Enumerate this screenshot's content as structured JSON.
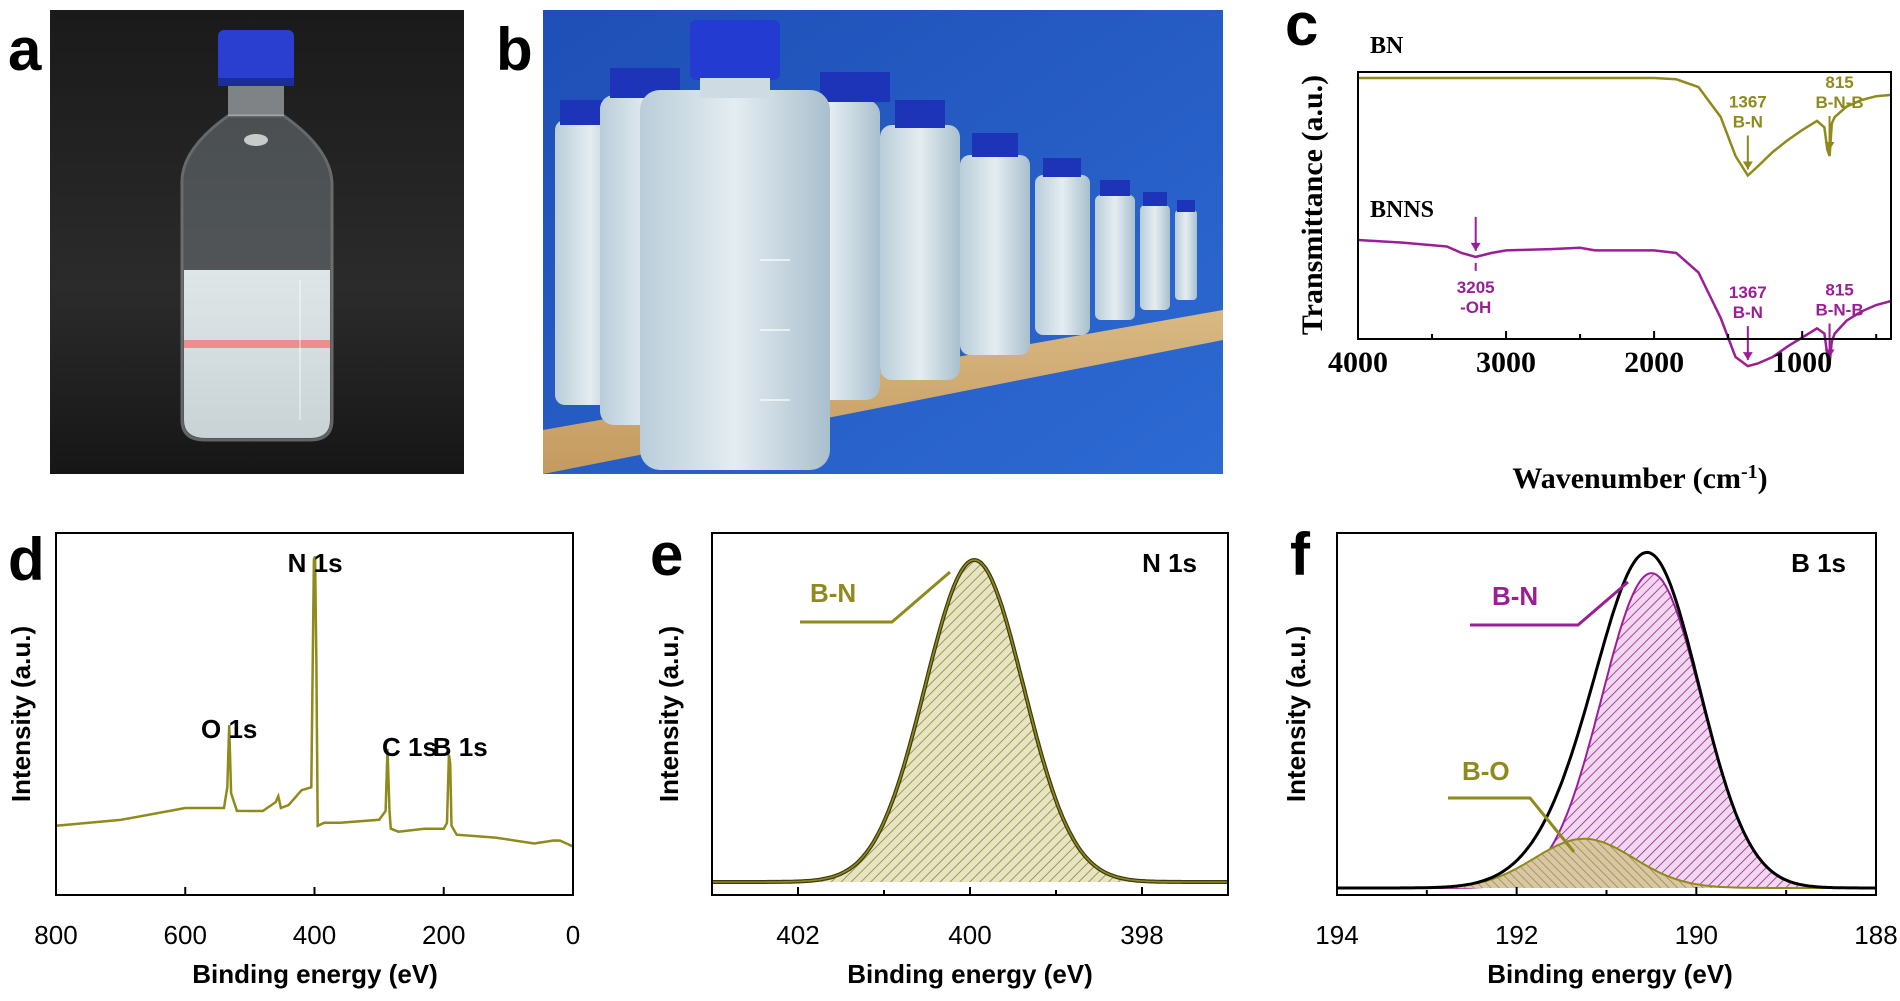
{
  "panels": {
    "a": {
      "label": "a"
    },
    "b": {
      "label": "b"
    },
    "c": {
      "label": "c"
    },
    "d": {
      "label": "d"
    },
    "e": {
      "label": "e"
    },
    "f": {
      "label": "f"
    }
  },
  "colors": {
    "olive": "#8f8a1c",
    "purple": "#9a1f96",
    "black": "#000000"
  },
  "chart_data": [
    {
      "panel": "c",
      "type": "line",
      "xlabel": "Wavenumber (cm",
      "xlabel_sup": "-1",
      "xlabel_end": ")",
      "ylabel": "Transmittance (a.u.)",
      "xlim": [
        4000,
        400
      ],
      "xticks": [
        "4000",
        "3000",
        "2000",
        "1000"
      ],
      "series": [
        {
          "name": "BN",
          "color": "#8f8a1c",
          "x": [
            4000,
            2000,
            1850,
            1700,
            1550,
            1450,
            1367,
            1300,
            1200,
            1100,
            1000,
            900,
            850,
            830,
            815,
            800,
            780,
            700,
            600,
            500,
            400
          ],
          "y": [
            0.0,
            0.0,
            -0.01,
            -0.07,
            -0.3,
            -0.6,
            -0.75,
            -0.68,
            -0.57,
            -0.48,
            -0.4,
            -0.33,
            -0.38,
            -0.55,
            -0.6,
            -0.35,
            -0.3,
            -0.22,
            -0.17,
            -0.14,
            -0.13
          ]
        },
        {
          "name": "BNNS",
          "color": "#9a1f96",
          "x": [
            4000,
            3700,
            3400,
            3300,
            3205,
            3100,
            3000,
            2700,
            2500,
            2400,
            2000,
            1850,
            1700,
            1550,
            1450,
            1367,
            1300,
            1200,
            1100,
            1000,
            900,
            850,
            830,
            815,
            800,
            780,
            700,
            600,
            500,
            400
          ],
          "y": [
            0.0,
            -0.02,
            -0.05,
            -0.1,
            -0.13,
            -0.1,
            -0.08,
            -0.07,
            -0.06,
            -0.08,
            -0.08,
            -0.1,
            -0.25,
            -0.6,
            -0.9,
            -0.97,
            -0.95,
            -0.9,
            -0.82,
            -0.75,
            -0.68,
            -0.72,
            -0.88,
            -0.95,
            -0.78,
            -0.72,
            -0.62,
            -0.55,
            -0.5,
            -0.47
          ]
        }
      ],
      "annotations": [
        {
          "series": "BN",
          "x": 1367,
          "lines": [
            "1367",
            "B-N"
          ]
        },
        {
          "series": "BN",
          "x": 815,
          "lines": [
            "815",
            "B-N-B"
          ]
        },
        {
          "series": "BNNS",
          "x": 3205,
          "lines": [
            "3205",
            "-OH"
          ]
        },
        {
          "series": "BNNS",
          "x": 1367,
          "lines": [
            "1367",
            "B-N"
          ]
        },
        {
          "series": "BNNS",
          "x": 815,
          "lines": [
            "815",
            "B-N-B"
          ]
        }
      ]
    },
    {
      "panel": "d",
      "type": "line",
      "xlabel": "Binding  energy (eV)",
      "ylabel": "Intensity (a.u.)",
      "xlim": [
        800,
        0
      ],
      "xticks": [
        "800",
        "600",
        "400",
        "200",
        "0"
      ],
      "series": [
        {
          "name": "",
          "color": "#8f8a1c",
          "x": [
            800,
            700,
            600,
            560,
            540,
            535,
            532,
            529,
            520,
            480,
            460,
            456,
            452,
            440,
            420,
            405,
            401,
            399,
            397,
            395,
            385,
            360,
            300,
            290,
            287,
            284,
            282,
            270,
            230,
            210,
            200,
            195,
            192,
            190,
            188,
            180,
            120,
            60,
            30,
            20,
            10,
            0
          ],
          "y": [
            0.06,
            0.09,
            0.12,
            0.13,
            0.12,
            0.2,
            0.4,
            0.18,
            0.11,
            0.12,
            0.14,
            0.17,
            0.12,
            0.14,
            0.18,
            0.2,
            0.96,
            0.98,
            0.6,
            0.07,
            0.07,
            0.08,
            0.08,
            0.12,
            0.32,
            0.12,
            0.05,
            0.05,
            0.05,
            0.06,
            0.05,
            0.08,
            0.3,
            0.28,
            0.06,
            0.04,
            0.02,
            0.01,
            0.01,
            0.02,
            0.0,
            0.0
          ]
        }
      ],
      "annotations": [
        {
          "x": 399,
          "text": "N 1s"
        },
        {
          "x": 532,
          "text": "O 1s"
        },
        {
          "x": 284,
          "text": "C 1s"
        },
        {
          "x": 190,
          "text": "B 1s"
        }
      ]
    },
    {
      "panel": "e",
      "type": "area",
      "title": "N 1s",
      "xlabel": "Binding  energy (eV)",
      "ylabel": "Intensity (a.u.)",
      "xlim": [
        403,
        397
      ],
      "xticks": [
        "402",
        "400",
        "398"
      ],
      "series": [
        {
          "name": "B-N",
          "center": 399.95,
          "fwhm": 1.35,
          "height": 1.0,
          "color": "#8f8a1c"
        }
      ]
    },
    {
      "panel": "f",
      "type": "area",
      "title": "B 1s",
      "xlabel": "Binding  energy (eV)",
      "ylabel": "Intensity (a.u.)",
      "xlim": [
        194,
        188
      ],
      "xticks": [
        "194",
        "192",
        "190",
        "188"
      ],
      "series": [
        {
          "name": "B-N",
          "center": 190.5,
          "fwhm": 1.3,
          "height": 0.96,
          "color": "#9a1f96"
        },
        {
          "name": "B-O",
          "center": 191.25,
          "fwhm": 1.3,
          "height": 0.15,
          "color": "#8f8a1c"
        }
      ]
    }
  ]
}
